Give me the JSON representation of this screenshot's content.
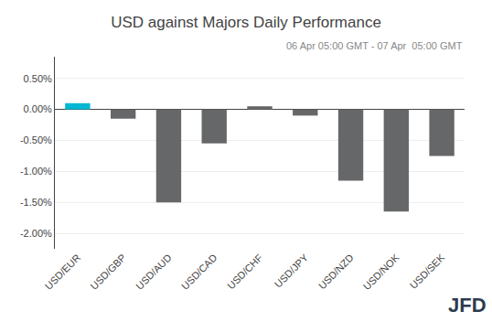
{
  "chart_data": {
    "type": "bar",
    "title": "USD against Majors Daily Performance",
    "subtitle": "06 Apr 05:00 GMT - 07 Apr  05:00 GMT",
    "annotations": [
      "JFD"
    ],
    "categories": [
      "USD/EUR",
      "USD/GBP",
      "USD/AUD",
      "USD/CAD",
      "USD/CHF",
      "USD/JPY",
      "USD/NZD",
      "USD/NOK",
      "USD/SEK"
    ],
    "values": [
      0.1,
      -0.15,
      -1.5,
      -0.55,
      0.05,
      -0.1,
      -1.15,
      -1.65,
      -0.75
    ],
    "colors": [
      "#00b8d4",
      "#666769",
      "#666769",
      "#666769",
      "#666769",
      "#666769",
      "#666769",
      "#666769",
      "#666769"
    ],
    "ylim": [
      -2.25,
      0.85
    ],
    "yticks": [
      {
        "value": 0.5,
        "label": "0.50%"
      },
      {
        "value": 0.0,
        "label": "0.00%"
      },
      {
        "value": -0.5,
        "label": "-0.50%"
      },
      {
        "value": -1.0,
        "label": "-1.00%"
      },
      {
        "value": -1.5,
        "label": "-1.50%"
      },
      {
        "value": -2.0,
        "label": "-2.00%"
      }
    ],
    "grid": true
  }
}
